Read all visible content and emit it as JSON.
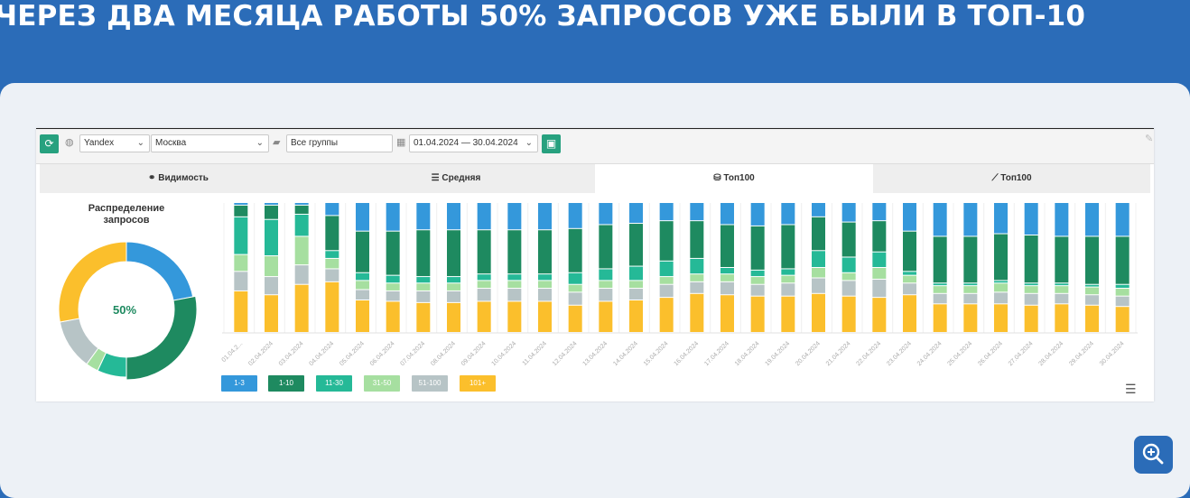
{
  "headline": "ЧЕРЕЗ ДВА МЕСЯЦА РАБОТЫ 50% ЗАПРОСОВ УЖЕ БЫЛИ В ТОП-10",
  "toolbar": {
    "engine": "Yandex",
    "region": "Москва",
    "groups": "Все группы",
    "period": "01.04.2024 — 30.04.2024"
  },
  "tabs": [
    {
      "label": "Видимость",
      "icon": "binoculars-icon"
    },
    {
      "label": "Средняя",
      "icon": "list-icon"
    },
    {
      "label": "Топ100",
      "icon": "box-icon"
    },
    {
      "label": "Топ100",
      "icon": "trend-icon"
    }
  ],
  "donut": {
    "title_line1": "Распределение",
    "title_line2": "запросов",
    "center_label": "50%",
    "segments": [
      {
        "name": "1-3",
        "value": 0.22
      },
      {
        "name": "1-10",
        "value": 0.28
      },
      {
        "name": "11-30",
        "value": 0.07
      },
      {
        "name": "31-50",
        "value": 0.03
      },
      {
        "name": "51-100",
        "value": 0.12
      },
      {
        "name": "101+",
        "value": 0.28
      }
    ]
  },
  "colors": {
    "c1_3": "#3498db",
    "c1_10": "#1e8a60",
    "c11_30": "#25b997",
    "c31_50": "#a6dfa0",
    "c51_100": "#b7c4c6",
    "c101": "#fbbf2c",
    "accent": "#2b6cb8"
  },
  "legend": [
    "1-3",
    "1-10",
    "11-30",
    "31-50",
    "51-100",
    "101+"
  ],
  "chart_data": {
    "type": "bar",
    "stacked": true,
    "categories": [
      "01.04.2...",
      "02.04.2024",
      "03.04.2024",
      "04.04.2024",
      "05.04.2024",
      "06.04.2024",
      "07.04.2024",
      "08.04.2024",
      "09.04.2024",
      "10.04.2024",
      "11.04.2024",
      "12.04.2024",
      "13.04.2024",
      "14.04.2024",
      "15.04.2024",
      "16.04.2024",
      "17.04.2024",
      "18.04.2024",
      "19.04.2024",
      "20.04.2024",
      "21.04.2024",
      "22.04.2024",
      "23.04.2024",
      "24.04.2024",
      "25.04.2024",
      "26.04.2024",
      "27.04.2024",
      "28.04.2024",
      "29.04.2024",
      "30.04.2024"
    ],
    "series": [
      {
        "name": "1-3",
        "values": [
          2,
          2,
          2,
          10,
          22,
          22,
          21,
          21,
          21,
          21,
          21,
          20,
          17,
          16,
          14,
          14,
          17,
          18,
          17,
          11,
          15,
          14,
          22,
          26,
          26,
          24,
          25,
          26,
          26,
          26
        ]
      },
      {
        "name": "1-10",
        "values": [
          9,
          11,
          7,
          27,
          32,
          34,
          36,
          36,
          34,
          34,
          34,
          34,
          34,
          33,
          31,
          29,
          33,
          34,
          34,
          26,
          27,
          24,
          31,
          36,
          36,
          36,
          37,
          36,
          37,
          37
        ]
      },
      {
        "name": "11-30",
        "values": [
          29,
          28,
          17,
          6,
          6,
          6,
          5,
          5,
          5,
          5,
          5,
          9,
          9,
          11,
          12,
          12,
          5,
          5,
          5,
          13,
          12,
          12,
          3,
          2,
          2,
          2,
          2,
          2,
          2,
          3
        ]
      },
      {
        "name": "31-50",
        "values": [
          13,
          16,
          22,
          8,
          7,
          6,
          6,
          6,
          6,
          6,
          6,
          6,
          6,
          6,
          6,
          6,
          6,
          6,
          6,
          8,
          6,
          9,
          6,
          6,
          6,
          7,
          6,
          6,
          6,
          6
        ]
      },
      {
        "name": "51-100",
        "values": [
          15,
          14,
          15,
          10,
          8,
          8,
          9,
          9,
          10,
          10,
          10,
          10,
          10,
          9,
          10,
          9,
          10,
          9,
          10,
          12,
          12,
          14,
          9,
          8,
          8,
          9,
          9,
          8,
          8,
          8
        ]
      },
      {
        "name": "101+",
        "values": [
          32,
          29,
          37,
          39,
          25,
          24,
          23,
          23,
          24,
          24,
          24,
          21,
          24,
          25,
          27,
          30,
          29,
          28,
          28,
          30,
          28,
          27,
          29,
          22,
          22,
          22,
          21,
          22,
          21,
          20
        ]
      }
    ],
    "ylim": [
      0,
      100
    ],
    "legend_position": "bottom-left"
  }
}
